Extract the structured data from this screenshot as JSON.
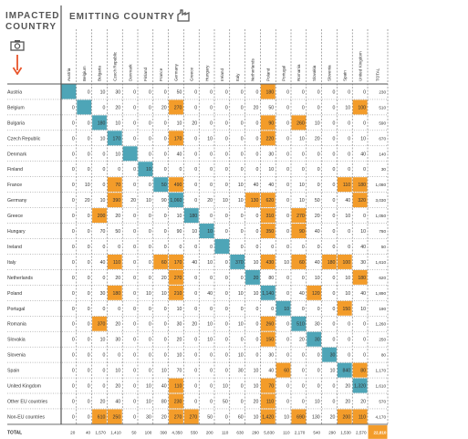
{
  "header": {
    "impacted_title": "IMPACTED COUNTRY",
    "emitting_title": "EMITTING COUNTRY"
  },
  "icons": {
    "factory": "factory-icon",
    "camera": "camera-icon",
    "arrow": "arrow-down-icon"
  },
  "colors": {
    "diagonal": "#4ea5b7",
    "highlight": "#f39c2a",
    "grand_total": "#f39c2a",
    "text": "#333333",
    "grid": "#555555"
  },
  "chart_data": {
    "type": "table",
    "columns": [
      "Austria",
      "Belgium",
      "Bulgaria",
      "Czech Republic",
      "Denmark",
      "Finland",
      "France",
      "Germany",
      "Greece",
      "Hungary",
      "Ireland",
      "Italy",
      "Netherlands",
      "Poland",
      "Portugal",
      "Romania",
      "Slovakia",
      "Slovenia",
      "Spain",
      "United Kingdom",
      "TOTAL"
    ],
    "rows": [
      {
        "name": "Austria",
        "values": [
          "",
          "0",
          "10",
          "30",
          "0",
          "0",
          "0",
          "50",
          "0",
          "0",
          "0",
          "0",
          "0",
          "180",
          "0",
          "0",
          "0",
          "0",
          "0",
          "0",
          "230"
        ]
      },
      {
        "name": "Belgium",
        "values": [
          "0",
          "",
          "0",
          "20",
          "0",
          "0",
          "20",
          "270",
          "0",
          "0",
          "0",
          "0",
          "20",
          "50",
          "0",
          "0",
          "0",
          "0",
          "10",
          "100",
          "510"
        ]
      },
      {
        "name": "Bulgaria",
        "values": [
          "0",
          "0",
          "180",
          "10",
          "0",
          "0",
          "0",
          "10",
          "20",
          "0",
          "0",
          "0",
          "0",
          "90",
          "0",
          "260",
          "10",
          "0",
          "0",
          "0",
          "590"
        ]
      },
      {
        "name": "Czech Republic",
        "values": [
          "0",
          "0",
          "10",
          "170",
          "0",
          "0",
          "0",
          "170",
          "0",
          "10",
          "0",
          "0",
          "0",
          "220",
          "0",
          "10",
          "20",
          "0",
          "0",
          "10",
          "670"
        ]
      },
      {
        "name": "Denmark",
        "values": [
          "0",
          "0",
          "0",
          "10",
          "",
          "0",
          "0",
          "40",
          "0",
          "0",
          "0",
          "0",
          "0",
          "30",
          "0",
          "0",
          "0",
          "0",
          "0",
          "40",
          "140"
        ]
      },
      {
        "name": "Finland",
        "values": [
          "0",
          "0",
          "0",
          "0",
          "0",
          "10",
          "0",
          "0",
          "0",
          "0",
          "0",
          "0",
          "0",
          "10",
          "0",
          "0",
          "0",
          "0",
          "0",
          "0",
          "30"
        ]
      },
      {
        "name": "France",
        "values": [
          "0",
          "10",
          "0",
          "70",
          "0",
          "0",
          "50",
          "490",
          "0",
          "0",
          "0",
          "10",
          "40",
          "40",
          "0",
          "10",
          "0",
          "0",
          "110",
          "180",
          "1,080"
        ]
      },
      {
        "name": "Germany",
        "values": [
          "0",
          "20",
          "10",
          "390",
          "20",
          "10",
          "90",
          "1,060",
          "0",
          "20",
          "10",
          "10",
          "130",
          "620",
          "0",
          "10",
          "50",
          "0",
          "40",
          "320",
          "3,030"
        ]
      },
      {
        "name": "Greece",
        "values": [
          "0",
          "0",
          "200",
          "20",
          "0",
          "0",
          "0",
          "10",
          "180",
          "0",
          "0",
          "0",
          "0",
          "310",
          "0",
          "270",
          "20",
          "0",
          "10",
          "0",
          "1,050"
        ]
      },
      {
        "name": "Hungary",
        "values": [
          "0",
          "0",
          "70",
          "50",
          "0",
          "0",
          "0",
          "90",
          "10",
          "10",
          "0",
          "0",
          "0",
          "350",
          "0",
          "90",
          "40",
          "0",
          "0",
          "10",
          "780"
        ]
      },
      {
        "name": "Ireland",
        "values": [
          "0",
          "0",
          "0",
          "0",
          "0",
          "0",
          "0",
          "0",
          "0",
          "0",
          "",
          "0",
          "0",
          "0",
          "0",
          "0",
          "0",
          "0",
          "0",
          "40",
          "50"
        ]
      },
      {
        "name": "Italy",
        "values": [
          "0",
          "0",
          "40",
          "110",
          "0",
          "0",
          "60",
          "170",
          "40",
          "10",
          "0",
          "370",
          "10",
          "430",
          "10",
          "60",
          "40",
          "180",
          "100",
          "30",
          "1,610"
        ]
      },
      {
        "name": "Netherlands",
        "values": [
          "0",
          "0",
          "0",
          "20",
          "0",
          "0",
          "20",
          "270",
          "0",
          "0",
          "0",
          "0",
          "20",
          "80",
          "0",
          "0",
          "10",
          "0",
          "10",
          "180",
          "620"
        ]
      },
      {
        "name": "Poland",
        "values": [
          "0",
          "0",
          "30",
          "180",
          "0",
          "10",
          "10",
          "210",
          "0",
          "40",
          "0",
          "10",
          "10",
          "1,140",
          "0",
          "40",
          "120",
          "0",
          "10",
          "40",
          "1,890"
        ]
      },
      {
        "name": "Portugal",
        "values": [
          "0",
          "0",
          "0",
          "0",
          "0",
          "0",
          "0",
          "10",
          "0",
          "0",
          "0",
          "0",
          "0",
          "0",
          "10",
          "0",
          "0",
          "0",
          "150",
          "10",
          "190"
        ]
      },
      {
        "name": "Romania",
        "values": [
          "0",
          "0",
          "370",
          "20",
          "0",
          "0",
          "0",
          "30",
          "20",
          "10",
          "0",
          "10",
          "0",
          "260",
          "0",
          "510",
          "30",
          "0",
          "0",
          "0",
          "1,260"
        ]
      },
      {
        "name": "Slovakia",
        "values": [
          "0",
          "0",
          "10",
          "30",
          "0",
          "0",
          "0",
          "20",
          "0",
          "10",
          "0",
          "0",
          "0",
          "150",
          "0",
          "20",
          "30",
          "0",
          "0",
          "0",
          "250"
        ]
      },
      {
        "name": "Slovenia",
        "values": [
          "0",
          "0",
          "0",
          "0",
          "0",
          "0",
          "0",
          "10",
          "0",
          "0",
          "0",
          "10",
          "0",
          "30",
          "0",
          "0",
          "0",
          "30",
          "0",
          "0",
          "80"
        ]
      },
      {
        "name": "Spain",
        "values": [
          "0",
          "0",
          "0",
          "10",
          "0",
          "0",
          "10",
          "70",
          "0",
          "0",
          "0",
          "30",
          "10",
          "40",
          "60",
          "0",
          "0",
          "10",
          "840",
          "80",
          "1,170"
        ]
      },
      {
        "name": "United Kingdom",
        "values": [
          "0",
          "0",
          "0",
          "20",
          "0",
          "10",
          "40",
          "110",
          "0",
          "0",
          "10",
          "0",
          "10",
          "70",
          "0",
          "0",
          "0",
          "0",
          "20",
          "1,320",
          "1,610"
        ]
      },
      {
        "name": "Other EU countries",
        "values": [
          "0",
          "0",
          "20",
          "40",
          "0",
          "10",
          "80",
          "230",
          "0",
          "0",
          "50",
          "0",
          "20",
          "110",
          "0",
          "0",
          "10",
          "0",
          "20",
          "20",
          "570"
        ]
      },
      {
        "name": "Non-EU countries",
        "values": [
          "0",
          "0",
          "610",
          "250",
          "0",
          "30",
          "20",
          "270",
          "270",
          "50",
          "0",
          "60",
          "10",
          "1,420",
          "10",
          "690",
          "130",
          "20",
          "200",
          "110",
          "4,170"
        ]
      }
    ],
    "total_row": {
      "name": "TOTAL",
      "values": [
        "20",
        "40",
        "1,570",
        "1,410",
        "50",
        "100",
        "390",
        "4,350",
        "550",
        "200",
        "110",
        "630",
        "290",
        "5,830",
        "110",
        "2,170",
        "540",
        "290",
        "1,530",
        "2,570",
        "22,810"
      ]
    },
    "diagonal_cells": [
      [
        0,
        0
      ],
      [
        1,
        1
      ],
      [
        2,
        2
      ],
      [
        3,
        3
      ],
      [
        4,
        4
      ],
      [
        5,
        5
      ],
      [
        6,
        6
      ],
      [
        7,
        7
      ],
      [
        8,
        8
      ],
      [
        9,
        9
      ],
      [
        10,
        10
      ],
      [
        11,
        11
      ],
      [
        12,
        12
      ],
      [
        13,
        13
      ],
      [
        14,
        14
      ],
      [
        15,
        15
      ],
      [
        16,
        16
      ],
      [
        17,
        17
      ],
      [
        18,
        18
      ],
      [
        19,
        19
      ]
    ],
    "highlighted_cells": [
      [
        0,
        13
      ],
      [
        1,
        7
      ],
      [
        1,
        19
      ],
      [
        2,
        2
      ],
      [
        2,
        13
      ],
      [
        2,
        15
      ],
      [
        3,
        3
      ],
      [
        3,
        7
      ],
      [
        3,
        13
      ],
      [
        6,
        3
      ],
      [
        6,
        7
      ],
      [
        6,
        18
      ],
      [
        6,
        19
      ],
      [
        7,
        3
      ],
      [
        7,
        7
      ],
      [
        7,
        12
      ],
      [
        7,
        13
      ],
      [
        7,
        19
      ],
      [
        8,
        2
      ],
      [
        8,
        13
      ],
      [
        8,
        15
      ],
      [
        9,
        13
      ],
      [
        9,
        15
      ],
      [
        11,
        3
      ],
      [
        11,
        6
      ],
      [
        11,
        7
      ],
      [
        11,
        13
      ],
      [
        11,
        15
      ],
      [
        11,
        17
      ],
      [
        11,
        18
      ],
      [
        12,
        7
      ],
      [
        12,
        19
      ],
      [
        13,
        3
      ],
      [
        13,
        7
      ],
      [
        13,
        13
      ],
      [
        13,
        16
      ],
      [
        14,
        18
      ],
      [
        15,
        2
      ],
      [
        15,
        13
      ],
      [
        15,
        15
      ],
      [
        16,
        13
      ],
      [
        18,
        14
      ],
      [
        18,
        18
      ],
      [
        18,
        19
      ],
      [
        19,
        7
      ],
      [
        19,
        13
      ],
      [
        19,
        19
      ],
      [
        20,
        7
      ],
      [
        20,
        13
      ],
      [
        21,
        2
      ],
      [
        21,
        3
      ],
      [
        21,
        7
      ],
      [
        21,
        8
      ],
      [
        21,
        13
      ],
      [
        21,
        15
      ],
      [
        21,
        18
      ],
      [
        21,
        19
      ]
    ]
  }
}
